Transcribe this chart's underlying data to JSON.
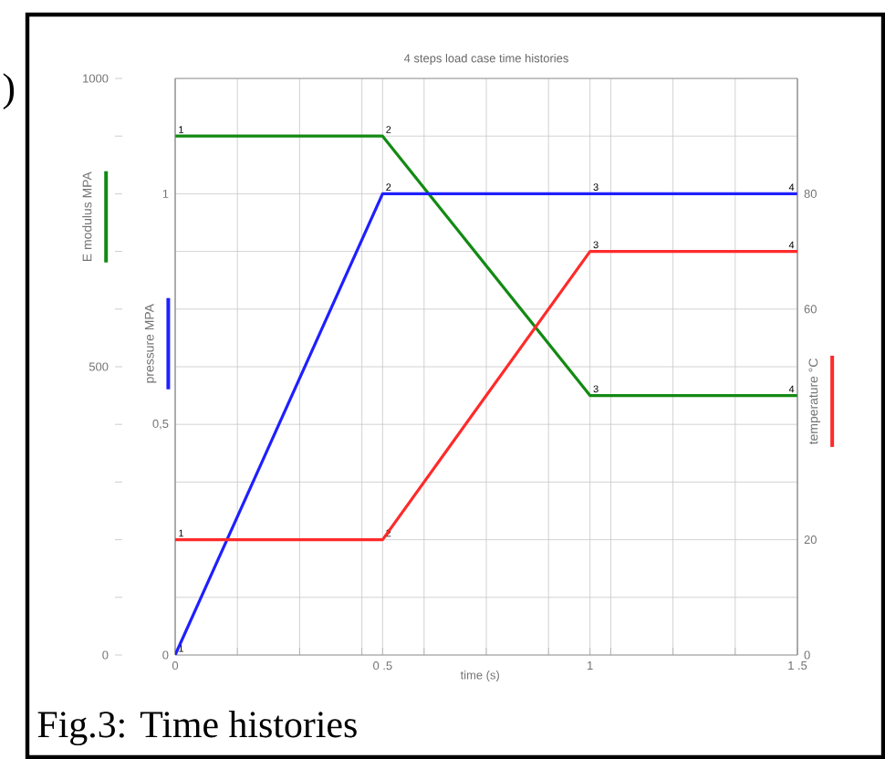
{
  "chart_data": {
    "type": "line",
    "title": "4 steps load case time histories",
    "xlabel": "time (s)",
    "ylabel": "E modulus MPA",
    "y2label": "pressure MPA",
    "y3label": "temperature °C",
    "x": [
      0,
      0.5,
      1,
      1.5
    ],
    "series": [
      {
        "color": "#138a13",
        "values": [
          900,
          900,
          450,
          450
        ]
      },
      {
        "color": "#1f1fff",
        "values": [
          0,
          1,
          1,
          1
        ],
        "axis": "y2"
      },
      {
        "color": "#ff2a2a",
        "values": [
          20,
          20,
          70,
          70
        ],
        "axis": "y3"
      }
    ],
    "xlim": [
      0,
      1.5
    ],
    "xticks": [
      0,
      {
        "value": 0.15,
        "label": null
      },
      {
        "value": 0.3,
        "label": null
      },
      {
        "value": 0.45,
        "label": null
      },
      {
        "value": 0.5,
        "label": "0 .5"
      },
      {
        "value": 0.6,
        "label": null
      },
      {
        "value": 0.75,
        "label": null
      },
      {
        "value": 0.9,
        "label": null
      },
      1,
      {
        "value": 1.05,
        "label": null
      },
      {
        "value": 1.2,
        "label": null
      },
      {
        "value": 1.35,
        "label": null
      },
      {
        "value": 1.5,
        "label": "1 .5"
      }
    ],
    "ylim": [
      0,
      1000
    ],
    "yticks": [
      0,
      {
        "value": 100,
        "label": null
      },
      {
        "value": 200,
        "label": null
      },
      {
        "value": 300,
        "label": null
      },
      {
        "value": 400,
        "label": null
      },
      500,
      {
        "value": 600,
        "label": null
      },
      {
        "value": 700,
        "label": null
      },
      {
        "value": 800,
        "label": null
      },
      {
        "value": 900,
        "label": null
      },
      1000
    ],
    "y2lim": [
      0,
      1.25
    ],
    "y2ticks": [
      0,
      {
        "value": 0.5,
        "label": "0,5"
      },
      1
    ],
    "y3lim": [
      0,
      100
    ],
    "y3ticks": [
      0,
      20,
      60,
      80
    ],
    "grid": true,
    "annotations": [
      ")",
      "Fig.3: Time histories",
      {
        "text": "1",
        "x": 0,
        "y": 900
      },
      {
        "text": "2",
        "x": 0.5,
        "y": 900
      },
      {
        "text": "3",
        "x": 1,
        "y": 450
      },
      {
        "text": "4",
        "x": 1.5,
        "y": 450
      },
      {
        "text": "1",
        "x": 0,
        "y": 0
      },
      {
        "text": "2",
        "x": 0.5,
        "y": 800
      },
      {
        "text": "3",
        "x": 1,
        "y": 800
      },
      {
        "text": "4",
        "x": 1.5,
        "y": 800
      },
      {
        "text": "1",
        "x": 0,
        "y": 200
      },
      {
        "text": "2",
        "x": 0.5,
        "y": 200
      },
      {
        "text": "3",
        "x": 1,
        "y": 700
      },
      {
        "text": "4",
        "x": 1.5,
        "y": 700
      }
    ]
  }
}
